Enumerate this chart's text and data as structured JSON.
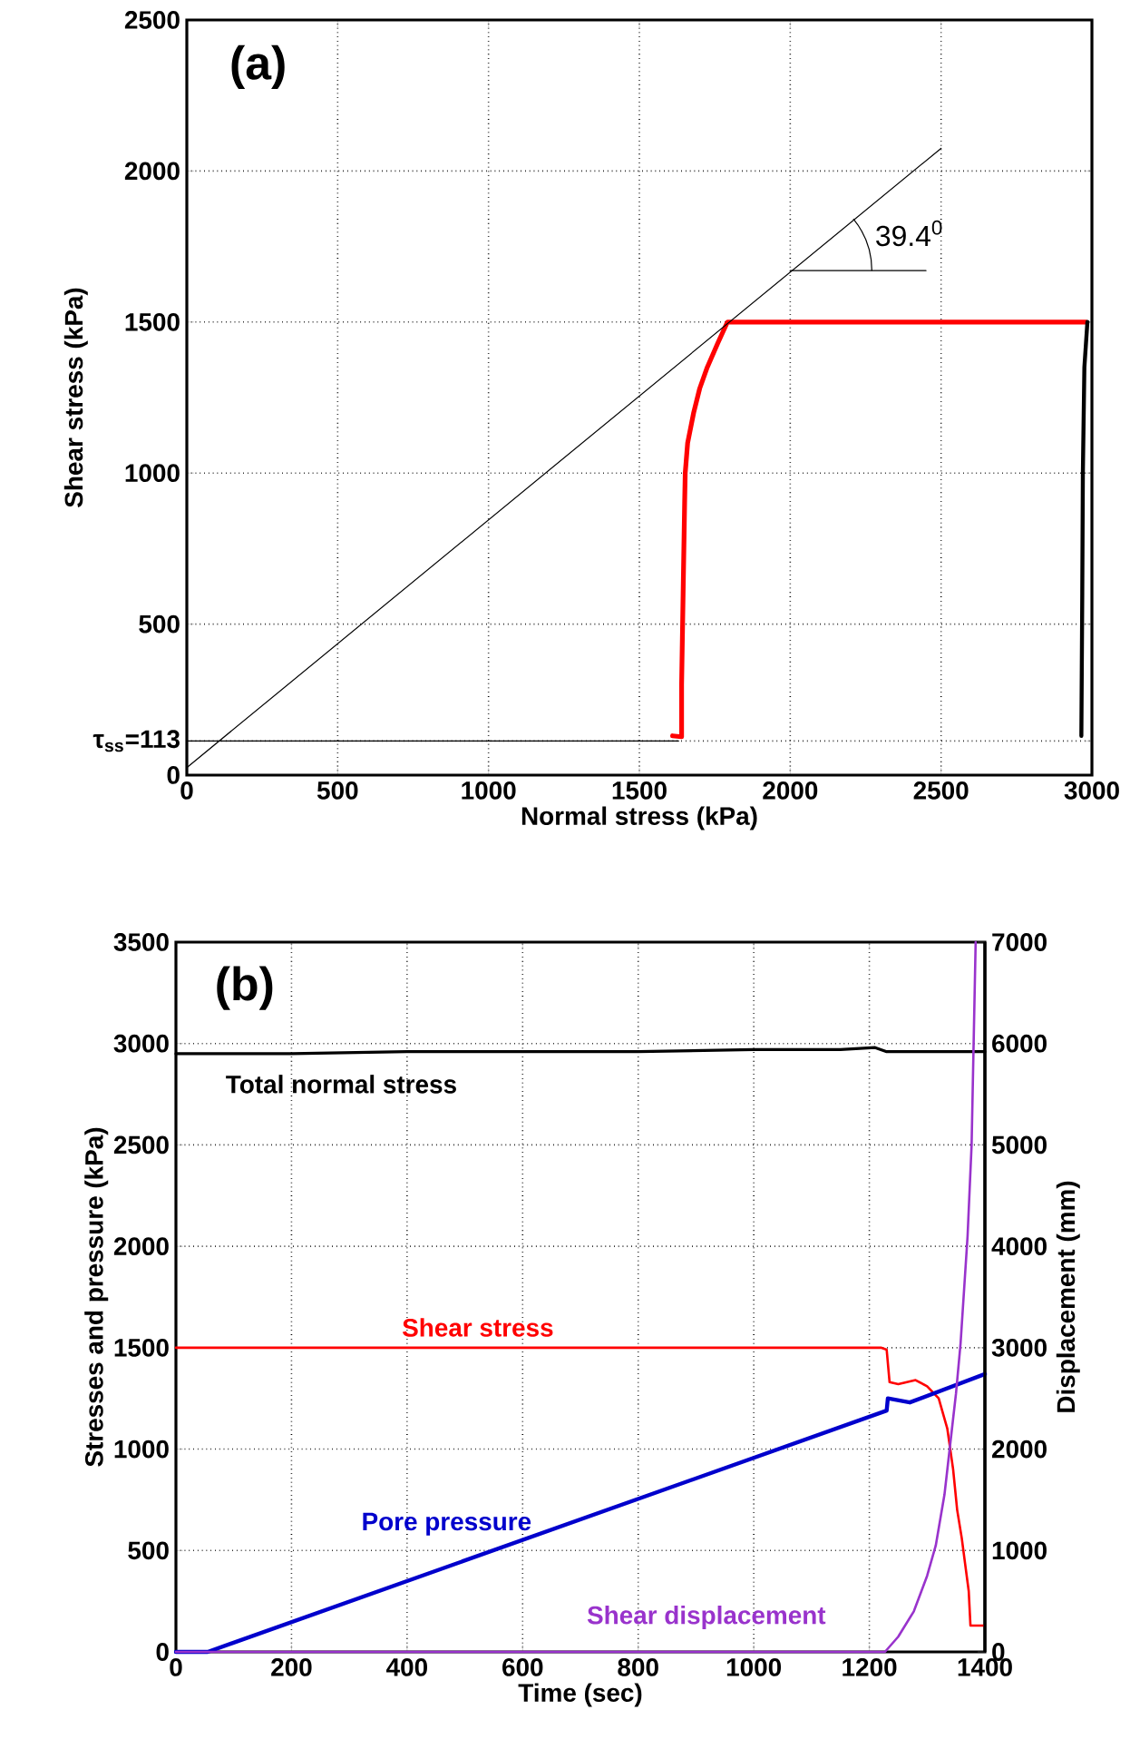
{
  "chart_data": [
    {
      "type": "line",
      "annotations": [
        "(a)",
        "39.4$^{0}$"
      ],
      "xlabel": "Normal stress (kPa)",
      "ylabel": "Shear stress (kPa)",
      "xlim": [
        0,
        3000
      ],
      "ylim": [
        0,
        2500
      ],
      "xticks": [
        0,
        500,
        1000,
        1500,
        2000,
        2500,
        3000
      ],
      "yticks": [
        0,
        {
          "value": 113,
          "label": "τ$_{ss}$=113"
        },
        500,
        1000,
        1500,
        2000,
        2500
      ],
      "grid": true,
      "series": [
        {
          "color": "#ff0000",
          "x": [
            1610,
            1640,
            1640,
            1645,
            1650,
            1652,
            1660,
            1680,
            1700,
            1725,
            1760,
            1792,
            2980
          ],
          "values": [
            130,
            127,
            300,
            600,
            900,
            1000,
            1100,
            1200,
            1280,
            1350,
            1430,
            1500,
            1500
          ]
        },
        {
          "color": "#000000",
          "x": [
            0,
            1630
          ],
          "values": [
            113,
            113
          ]
        },
        {
          "color": "#000000",
          "x": [
            0,
            2500
          ],
          "values": [
            25,
            2075
          ]
        },
        {
          "color": "#000000",
          "x": [
            2000,
            2450
          ],
          "values": [
            1670,
            1670
          ]
        },
        {
          "color": "#000000",
          "x": [
            2985,
            2975,
            2970,
            2968,
            2965
          ],
          "values": [
            1500,
            1350,
            1000,
            600,
            130
          ]
        }
      ]
    },
    {
      "type": "line",
      "annotations": [
        "(b)"
      ],
      "xlabel": "Time (sec)",
      "ylabel": "Stresses and pressure (kPa)",
      "y2label": "Displacement (mm)",
      "xlim": [
        0,
        1400
      ],
      "ylim": [
        0,
        3500
      ],
      "y2lim": [
        0,
        7000
      ],
      "xticks": [
        0,
        200,
        400,
        600,
        800,
        1000,
        1200,
        1400
      ],
      "yticks": [
        0,
        500,
        1000,
        1500,
        2000,
        2500,
        3000,
        3500
      ],
      "y2ticks": [
        0,
        1000,
        2000,
        3000,
        4000,
        5000,
        6000,
        7000
      ],
      "grid": true,
      "series": [
        {
          "name": "Total normal stress",
          "color": "#000000",
          "x": [
            0,
            200,
            400,
            600,
            800,
            1000,
            1150,
            1210,
            1230,
            1300,
            1400
          ],
          "values": [
            2950,
            2950,
            2960,
            2960,
            2960,
            2970,
            2970,
            2980,
            2960,
            2960,
            2960
          ]
        },
        {
          "name": "Shear stress",
          "color": "#ff0000",
          "x": [
            0,
            1220,
            1230,
            1235,
            1250,
            1265,
            1280,
            1300,
            1320,
            1335,
            1345,
            1352,
            1360,
            1365,
            1372,
            1375,
            1400
          ],
          "values": [
            1500,
            1500,
            1490,
            1330,
            1320,
            1330,
            1340,
            1310,
            1250,
            1100,
            900,
            700,
            560,
            450,
            300,
            130,
            130
          ]
        },
        {
          "name": "Pore pressure",
          "color": "#0000cc",
          "x": [
            0,
            55,
            1230,
            1232,
            1270,
            1400
          ],
          "values": [
            0,
            0,
            1190,
            1250,
            1230,
            1370
          ]
        },
        {
          "name": "Shear displacement",
          "color": "#9933cc",
          "axis": "y2",
          "x": [
            0,
            1227,
            1250,
            1277,
            1300,
            1315,
            1330,
            1340,
            1350,
            1358,
            1370,
            1377,
            1384
          ],
          "values": [
            0,
            0,
            150,
            400,
            750,
            1050,
            1550,
            2050,
            2550,
            3050,
            4100,
            5000,
            7000
          ]
        }
      ]
    }
  ]
}
